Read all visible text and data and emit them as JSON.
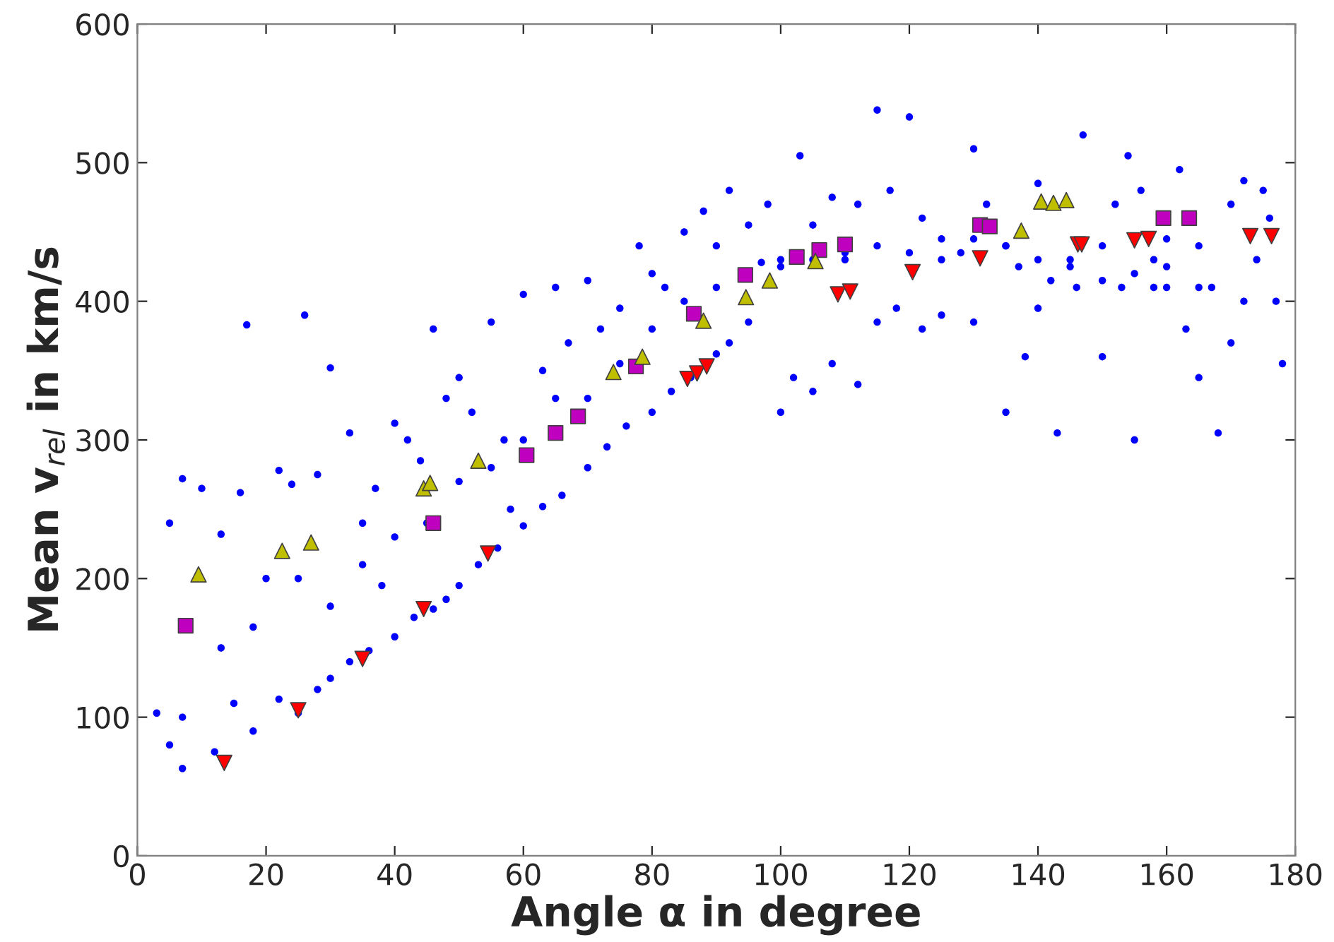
{
  "chart_data": {
    "type": "scatter",
    "xlabel": "Angle α in degree",
    "ylabel": "Mean v$_{rel}$ in km/s",
    "xlim": [
      0,
      180
    ],
    "ylim": [
      0,
      600
    ],
    "xticks": [
      0,
      20,
      40,
      60,
      80,
      100,
      120,
      140,
      160,
      180
    ],
    "yticks": [
      0,
      100,
      200,
      300,
      400,
      500,
      600
    ],
    "grid": false,
    "series": [
      {
        "color": "#0000ff",
        "marker": "circle",
        "x": [
          5,
          7,
          7,
          12,
          15,
          18,
          22,
          25,
          28,
          30,
          33,
          36,
          40,
          43,
          46,
          48,
          50,
          53,
          56,
          60,
          63,
          66,
          70,
          73,
          76,
          80,
          83,
          86,
          90,
          92,
          95,
          100,
          102,
          105,
          108,
          112,
          115,
          118,
          122,
          125,
          130,
          135,
          138,
          140,
          143,
          146,
          150,
          153,
          155,
          158,
          160,
          163,
          165,
          168,
          170,
          172,
          174,
          177,
          178,
          3,
          5,
          7,
          10,
          13,
          16,
          17,
          20,
          22,
          24,
          26,
          28,
          30,
          33,
          35,
          37,
          40,
          42,
          44,
          46,
          48,
          50,
          52,
          55,
          57,
          60,
          63,
          65,
          67,
          70,
          72,
          75,
          78,
          80,
          82,
          85,
          88,
          90,
          92,
          95,
          98,
          100,
          103,
          105,
          108,
          110,
          112,
          115,
          117,
          120,
          122,
          125,
          128,
          130,
          132,
          135,
          137,
          140,
          142,
          145,
          147,
          150,
          152,
          154,
          156,
          158,
          160,
          162,
          165,
          167,
          170,
          172,
          175,
          176,
          25,
          30,
          35,
          40,
          45,
          50,
          55,
          60,
          65,
          70,
          75,
          80,
          85,
          90,
          97,
          100,
          105,
          110,
          115,
          120,
          125,
          130,
          135,
          140,
          145,
          150,
          155,
          160,
          165,
          13,
          18,
          38,
          58
        ],
        "values": [
          80,
          63,
          100,
          75,
          110,
          90,
          113,
          103,
          120,
          128,
          140,
          148,
          158,
          172,
          178,
          185,
          195,
          210,
          222,
          238,
          252,
          260,
          280,
          295,
          310,
          320,
          335,
          345,
          362,
          370,
          385,
          320,
          345,
          335,
          355,
          340,
          385,
          395,
          380,
          390,
          385,
          320,
          360,
          395,
          305,
          410,
          360,
          410,
          300,
          410,
          410,
          380,
          345,
          305,
          370,
          400,
          430,
          400,
          355,
          103,
          240,
          272,
          265,
          232,
          262,
          383,
          200,
          278,
          268,
          390,
          275,
          352,
          305,
          240,
          265,
          312,
          300,
          285,
          380,
          330,
          345,
          320,
          385,
          300,
          405,
          350,
          410,
          370,
          415,
          380,
          395,
          440,
          420,
          410,
          450,
          465,
          440,
          480,
          455,
          470,
          430,
          505,
          455,
          475,
          430,
          470,
          538,
          480,
          533,
          460,
          445,
          435,
          510,
          470,
          440,
          425,
          485,
          415,
          430,
          520,
          415,
          470,
          505,
          480,
          430,
          445,
          495,
          440,
          410,
          470,
          487,
          480,
          460,
          200,
          180,
          210,
          230,
          240,
          270,
          280,
          300,
          330,
          330,
          355,
          380,
          400,
          410,
          428,
          425,
          430,
          435,
          440,
          435,
          430,
          445,
          440,
          430,
          425,
          440,
          420,
          425,
          410,
          150,
          165,
          195,
          250
        ]
      },
      {
        "color": "#bf00bf",
        "marker": "square",
        "x": [
          7.5,
          46,
          60.5,
          65,
          68.5,
          77.5,
          86.5,
          94.5,
          102.5,
          106,
          110,
          131,
          132.5,
          159.5,
          163.5
        ],
        "values": [
          166,
          240,
          289,
          305,
          317,
          353,
          391,
          419,
          432,
          437,
          441,
          455,
          454,
          460,
          460
        ]
      },
      {
        "color": "#bfbf00",
        "marker": "triangle",
        "x": [
          9.5,
          22.5,
          27,
          44.5,
          45.5,
          53,
          74,
          78.5,
          88,
          94.6,
          98.3,
          105.4,
          137.4,
          140.5,
          142.4,
          144.4
        ],
        "values": [
          203,
          220,
          226,
          265,
          269,
          285,
          349,
          360,
          386,
          403,
          415,
          429,
          451,
          472,
          471,
          473
        ]
      },
      {
        "color": "#ff0000",
        "marker": "triangle_down",
        "x": [
          13.5,
          25,
          35,
          44.5,
          54.5,
          85.5,
          87,
          88.5,
          108.9,
          110.8,
          120.5,
          131,
          146.2,
          146.8,
          155,
          157.2,
          173,
          176.3
        ],
        "values": [
          67,
          105,
          142,
          178,
          218,
          344,
          348,
          353,
          405,
          407,
          421,
          431,
          441,
          441,
          444,
          445,
          447,
          447
        ]
      }
    ]
  }
}
